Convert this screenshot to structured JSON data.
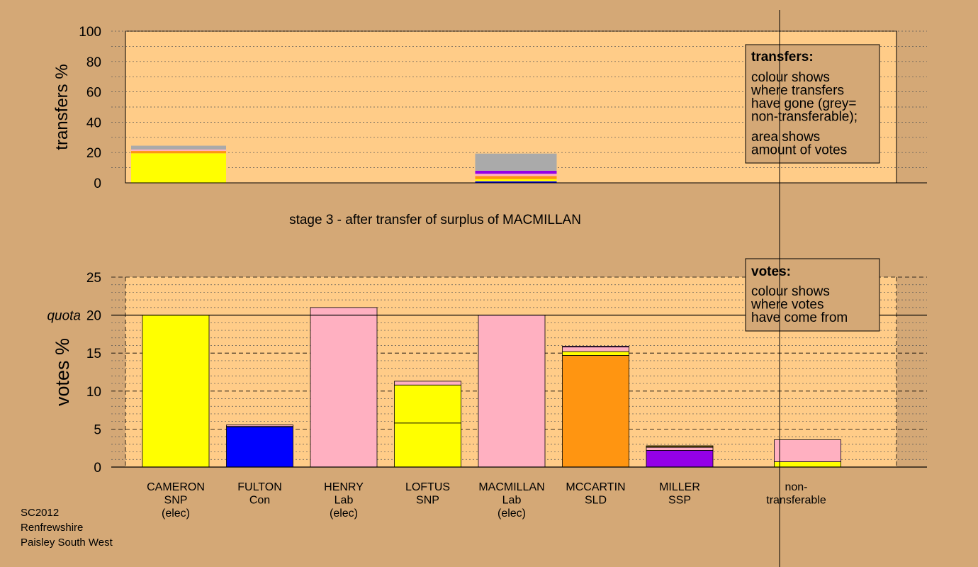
{
  "chart_data": [
    {
      "type": "bar",
      "name": "transfers",
      "ylabel": "transfers %",
      "ylim": [
        0,
        100
      ],
      "yticks": [
        0,
        20,
        40,
        60,
        80,
        100
      ],
      "bars": [
        {
          "slot": 0,
          "stack": [
            {
              "color": "#ffff00",
              "value": 19.5
            },
            {
              "color": "#ff9511",
              "value": 1.5
            },
            {
              "color": "#ffb0c1",
              "value": 1.0
            },
            {
              "color": "#aaaaaa",
              "value": 2.5
            }
          ]
        },
        {
          "slot": 3,
          "stack": [
            {
              "color": "#0000ff",
              "value": 1.0
            },
            {
              "color": "#ffff00",
              "value": 1.5
            },
            {
              "color": "#ff9511",
              "value": 2.0
            },
            {
              "color": "#ffb0c1",
              "value": 1.5
            },
            {
              "color": "#9400e8",
              "value": 2.0
            },
            {
              "color": "#aaaaaa",
              "value": 11.3
            }
          ]
        }
      ],
      "legend": {
        "title": "transfers:",
        "lines1": [
          "colour shows",
          "where transfers",
          "have gone (grey=",
          "non-transferable);"
        ],
        "lines2": [
          "area shows",
          "amount of votes"
        ]
      }
    },
    {
      "type": "bar",
      "name": "votes",
      "title": "stage 3 - after transfer of surplus of MACMILLAN",
      "ylabel": "votes %",
      "ylim": [
        0,
        25
      ],
      "yticks": [
        0,
        5,
        10,
        15,
        20,
        25
      ],
      "quota": 20,
      "quota_label": "quota",
      "categories": [
        {
          "lines": [
            "CAMERON",
            "SNP",
            "(elec)"
          ]
        },
        {
          "lines": [
            "FULTON",
            "Con"
          ]
        },
        {
          "lines": [
            "HENRY",
            "Lab",
            "(elec)"
          ]
        },
        {
          "lines": [
            "LOFTUS",
            "SNP"
          ]
        },
        {
          "lines": [
            "MACMILLAN",
            "Lab",
            "(elec)"
          ]
        },
        {
          "lines": [
            "MCCARTIN",
            "SLD"
          ]
        },
        {
          "lines": [
            "MILLER",
            "SSP"
          ]
        },
        {
          "lines": [
            "non-",
            "transferable"
          ]
        }
      ],
      "bars": [
        {
          "slot": 0,
          "stack": [
            {
              "color": "#ffff00",
              "value": 20.0
            }
          ]
        },
        {
          "slot": 1,
          "stack": [
            {
              "color": "#0000ff",
              "value": 5.3
            },
            {
              "color": "#ffff00",
              "value": 0.05
            },
            {
              "color": "#ffb0c1",
              "value": 0.2
            }
          ]
        },
        {
          "slot": 2,
          "stack": [
            {
              "color": "#ffb0c1",
              "value": 21.0
            }
          ]
        },
        {
          "slot": 3,
          "stack": [
            {
              "color": "#ffff00",
              "value": 5.8
            },
            {
              "color": "#ffff00",
              "value": 5.0
            },
            {
              "color": "#ffb0c1",
              "value": 0.5
            }
          ]
        },
        {
          "slot": 4,
          "stack": [
            {
              "color": "#ffb0c1",
              "value": 20.0
            }
          ]
        },
        {
          "slot": 5,
          "stack": [
            {
              "color": "#ff9511",
              "value": 14.7
            },
            {
              "color": "#ffff00",
              "value": 0.5
            },
            {
              "color": "#ffb0c1",
              "value": 0.6
            },
            {
              "color": "#9400e8",
              "value": 0.1
            }
          ]
        },
        {
          "slot": 6,
          "stack": [
            {
              "color": "#9400e8",
              "value": 2.2
            },
            {
              "color": "#ffb0c1",
              "value": 0.4
            },
            {
              "color": "#ff9511",
              "value": 0.1
            },
            {
              "color": "#ffff00",
              "value": 0.1
            }
          ]
        },
        {
          "slot": 7,
          "stack": [
            {
              "color": "#ffff00",
              "value": 0.7
            },
            {
              "color": "#ffb0c1",
              "value": 2.9
            }
          ]
        }
      ],
      "legend": {
        "title": "votes:",
        "lines1": [
          "colour shows",
          "where votes",
          "have come from"
        ]
      }
    }
  ],
  "caption": [
    "SC2012",
    "Renfrewshire",
    "Paisley South West"
  ],
  "colors": {
    "page_bg": "#d4a876",
    "plot_bg": "#ffcc88",
    "legend_bg": "#d4a876"
  }
}
